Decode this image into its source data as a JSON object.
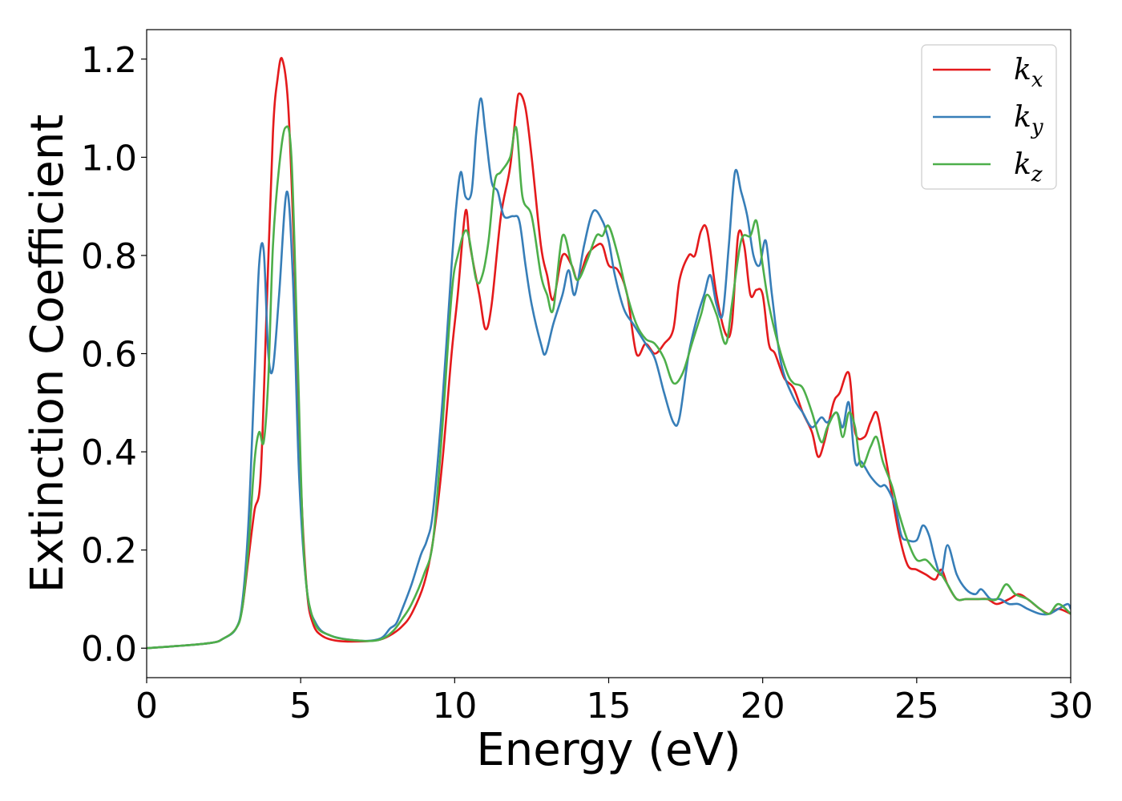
{
  "chart_data": {
    "type": "line",
    "title": "",
    "xlabel": "Energy (eV)",
    "ylabel": "Extinction Coefficient",
    "xlim": [
      0,
      30
    ],
    "ylim": [
      -0.06,
      1.26
    ],
    "xticks": [
      0,
      5,
      10,
      15,
      20,
      25,
      30
    ],
    "xtick_labels": [
      "0",
      "5",
      "10",
      "15",
      "20",
      "25",
      "30"
    ],
    "yticks": [
      0.0,
      0.2,
      0.4,
      0.6,
      0.8,
      1.0,
      1.2
    ],
    "ytick_labels": [
      "0.0",
      "0.2",
      "0.4",
      "0.6",
      "0.8",
      "1.0",
      "1.2"
    ],
    "grid": false,
    "legend_position": "top-right",
    "series": [
      {
        "name": "kx",
        "legend_base": "k",
        "legend_sub": "x",
        "color": "#e41a1c",
        "x": [
          0,
          2,
          2.5,
          2.9,
          3.1,
          3.3,
          3.5,
          3.7,
          3.9,
          4.1,
          4.25,
          4.4,
          4.6,
          4.8,
          5.0,
          5.2,
          5.4,
          5.7,
          6.2,
          7.0,
          7.6,
          8.0,
          8.3,
          8.6,
          9.0,
          9.3,
          9.6,
          9.9,
          10.1,
          10.35,
          10.5,
          10.8,
          11.0,
          11.2,
          11.5,
          11.8,
          12.0,
          12.1,
          12.3,
          12.5,
          12.8,
          13.0,
          13.2,
          13.5,
          13.8,
          14.0,
          14.3,
          14.6,
          14.8,
          15.0,
          15.3,
          15.6,
          15.9,
          16.2,
          16.5,
          16.8,
          17.1,
          17.3,
          17.6,
          17.8,
          18.0,
          18.2,
          18.5,
          18.8,
          19.0,
          19.2,
          19.4,
          19.6,
          19.8,
          20.0,
          20.2,
          20.4,
          20.7,
          21.0,
          21.3,
          21.6,
          21.8,
          22.0,
          22.3,
          22.5,
          22.8,
          23.0,
          23.3,
          23.5,
          23.7,
          23.9,
          24.1,
          24.4,
          24.7,
          25.0,
          25.3,
          25.6,
          25.8,
          26.0,
          26.3,
          26.6,
          27.0,
          27.3,
          27.6,
          28.0,
          28.3,
          28.6,
          29.0,
          29.3,
          29.6,
          30.0
        ],
        "y": [
          0.0,
          0.01,
          0.02,
          0.04,
          0.08,
          0.18,
          0.28,
          0.35,
          0.7,
          1.05,
          1.16,
          1.2,
          1.1,
          0.78,
          0.35,
          0.12,
          0.05,
          0.025,
          0.015,
          0.014,
          0.018,
          0.03,
          0.045,
          0.07,
          0.13,
          0.22,
          0.38,
          0.6,
          0.72,
          0.89,
          0.82,
          0.72,
          0.65,
          0.7,
          0.88,
          0.98,
          1.1,
          1.13,
          1.1,
          1.0,
          0.82,
          0.76,
          0.71,
          0.8,
          0.78,
          0.75,
          0.8,
          0.82,
          0.82,
          0.78,
          0.77,
          0.72,
          0.6,
          0.62,
          0.6,
          0.62,
          0.65,
          0.75,
          0.8,
          0.8,
          0.85,
          0.85,
          0.72,
          0.64,
          0.66,
          0.84,
          0.82,
          0.72,
          0.73,
          0.72,
          0.62,
          0.6,
          0.55,
          0.53,
          0.48,
          0.44,
          0.39,
          0.42,
          0.5,
          0.52,
          0.56,
          0.44,
          0.43,
          0.46,
          0.48,
          0.42,
          0.35,
          0.24,
          0.17,
          0.16,
          0.15,
          0.14,
          0.16,
          0.13,
          0.1,
          0.1,
          0.1,
          0.1,
          0.09,
          0.1,
          0.11,
          0.1,
          0.08,
          0.07,
          0.08,
          0.07
        ]
      },
      {
        "name": "ky",
        "legend_base": "k",
        "legend_sub": "y",
        "color": "#377eb8",
        "x": [
          0,
          2,
          2.5,
          2.9,
          3.1,
          3.3,
          3.5,
          3.65,
          3.8,
          3.95,
          4.1,
          4.3,
          4.55,
          4.75,
          4.95,
          5.2,
          5.5,
          6.0,
          7.0,
          7.6,
          7.9,
          8.1,
          8.3,
          8.6,
          8.9,
          9.1,
          9.3,
          9.6,
          9.9,
          10.05,
          10.2,
          10.35,
          10.55,
          10.7,
          10.85,
          11.0,
          11.2,
          11.4,
          11.6,
          11.9,
          12.1,
          12.3,
          12.5,
          12.8,
          12.95,
          13.2,
          13.5,
          13.7,
          13.9,
          14.2,
          14.5,
          14.8,
          15.0,
          15.2,
          15.5,
          15.8,
          16.2,
          16.5,
          16.8,
          17.1,
          17.3,
          17.6,
          17.9,
          18.1,
          18.3,
          18.5,
          18.7,
          18.9,
          19.1,
          19.3,
          19.5,
          19.7,
          19.9,
          20.1,
          20.3,
          20.6,
          21.0,
          21.3,
          21.6,
          21.9,
          22.1,
          22.4,
          22.6,
          22.8,
          23.0,
          23.2,
          23.5,
          23.8,
          24.0,
          24.3,
          24.5,
          24.7,
          25.0,
          25.2,
          25.4,
          25.6,
          25.8,
          26.0,
          26.3,
          26.6,
          26.9,
          27.1,
          27.4,
          27.7,
          28.0,
          28.3,
          28.6,
          29.0,
          29.3,
          29.6,
          29.9,
          30.0
        ],
        "y": [
          0.0,
          0.01,
          0.02,
          0.04,
          0.09,
          0.25,
          0.55,
          0.78,
          0.81,
          0.6,
          0.57,
          0.72,
          0.93,
          0.75,
          0.35,
          0.12,
          0.05,
          0.025,
          0.015,
          0.02,
          0.04,
          0.05,
          0.08,
          0.13,
          0.19,
          0.22,
          0.28,
          0.5,
          0.78,
          0.9,
          0.97,
          0.92,
          0.93,
          1.05,
          1.12,
          1.05,
          0.95,
          0.93,
          0.88,
          0.88,
          0.87,
          0.78,
          0.7,
          0.62,
          0.6,
          0.66,
          0.72,
          0.77,
          0.72,
          0.82,
          0.89,
          0.87,
          0.83,
          0.76,
          0.69,
          0.66,
          0.62,
          0.59,
          0.52,
          0.46,
          0.47,
          0.6,
          0.68,
          0.72,
          0.76,
          0.7,
          0.68,
          0.82,
          0.97,
          0.93,
          0.88,
          0.8,
          0.78,
          0.83,
          0.72,
          0.58,
          0.51,
          0.48,
          0.45,
          0.47,
          0.46,
          0.48,
          0.45,
          0.5,
          0.38,
          0.38,
          0.35,
          0.33,
          0.33,
          0.29,
          0.23,
          0.22,
          0.22,
          0.25,
          0.23,
          0.18,
          0.15,
          0.21,
          0.15,
          0.12,
          0.11,
          0.12,
          0.1,
          0.1,
          0.09,
          0.09,
          0.08,
          0.07,
          0.07,
          0.08,
          0.09,
          0.08
        ]
      },
      {
        "name": "kz",
        "legend_base": "k",
        "legend_sub": "z",
        "color": "#4daf4a",
        "x": [
          0,
          2,
          2.5,
          2.9,
          3.1,
          3.3,
          3.5,
          3.65,
          3.8,
          3.95,
          4.1,
          4.3,
          4.5,
          4.7,
          4.9,
          5.1,
          5.4,
          6.0,
          7.0,
          7.6,
          8.0,
          8.3,
          8.6,
          9.0,
          9.3,
          9.6,
          9.9,
          10.1,
          10.4,
          10.7,
          10.9,
          11.1,
          11.3,
          11.5,
          11.8,
          12.0,
          12.2,
          12.5,
          12.8,
          13.0,
          13.2,
          13.5,
          13.8,
          14.0,
          14.3,
          14.6,
          14.8,
          15.0,
          15.3,
          15.6,
          15.9,
          16.2,
          16.5,
          16.8,
          17.1,
          17.4,
          17.7,
          18.0,
          18.2,
          18.5,
          18.8,
          19.0,
          19.3,
          19.6,
          19.8,
          20.0,
          20.2,
          20.5,
          20.8,
          21.0,
          21.3,
          21.6,
          21.9,
          22.1,
          22.4,
          22.6,
          22.8,
          23.0,
          23.2,
          23.5,
          23.7,
          23.9,
          24.2,
          24.4,
          24.7,
          25.0,
          25.3,
          25.6,
          25.8,
          26.0,
          26.3,
          26.6,
          27.0,
          27.3,
          27.6,
          27.9,
          28.2,
          28.6,
          29.0,
          29.3,
          29.6,
          30.0
        ],
        "y": [
          0.0,
          0.01,
          0.02,
          0.04,
          0.08,
          0.2,
          0.38,
          0.44,
          0.42,
          0.55,
          0.82,
          0.98,
          1.06,
          1.0,
          0.6,
          0.2,
          0.06,
          0.025,
          0.015,
          0.018,
          0.035,
          0.06,
          0.09,
          0.15,
          0.22,
          0.45,
          0.72,
          0.8,
          0.85,
          0.75,
          0.76,
          0.83,
          0.95,
          0.97,
          1.0,
          1.06,
          0.92,
          0.88,
          0.76,
          0.72,
          0.69,
          0.84,
          0.78,
          0.75,
          0.79,
          0.84,
          0.84,
          0.86,
          0.8,
          0.72,
          0.66,
          0.63,
          0.62,
          0.59,
          0.54,
          0.56,
          0.62,
          0.68,
          0.72,
          0.68,
          0.62,
          0.7,
          0.83,
          0.84,
          0.87,
          0.78,
          0.7,
          0.62,
          0.56,
          0.54,
          0.53,
          0.48,
          0.42,
          0.45,
          0.48,
          0.43,
          0.48,
          0.45,
          0.37,
          0.41,
          0.43,
          0.38,
          0.33,
          0.28,
          0.22,
          0.18,
          0.18,
          0.16,
          0.15,
          0.13,
          0.1,
          0.1,
          0.1,
          0.1,
          0.1,
          0.13,
          0.11,
          0.1,
          0.08,
          0.07,
          0.09,
          0.07
        ]
      }
    ]
  }
}
